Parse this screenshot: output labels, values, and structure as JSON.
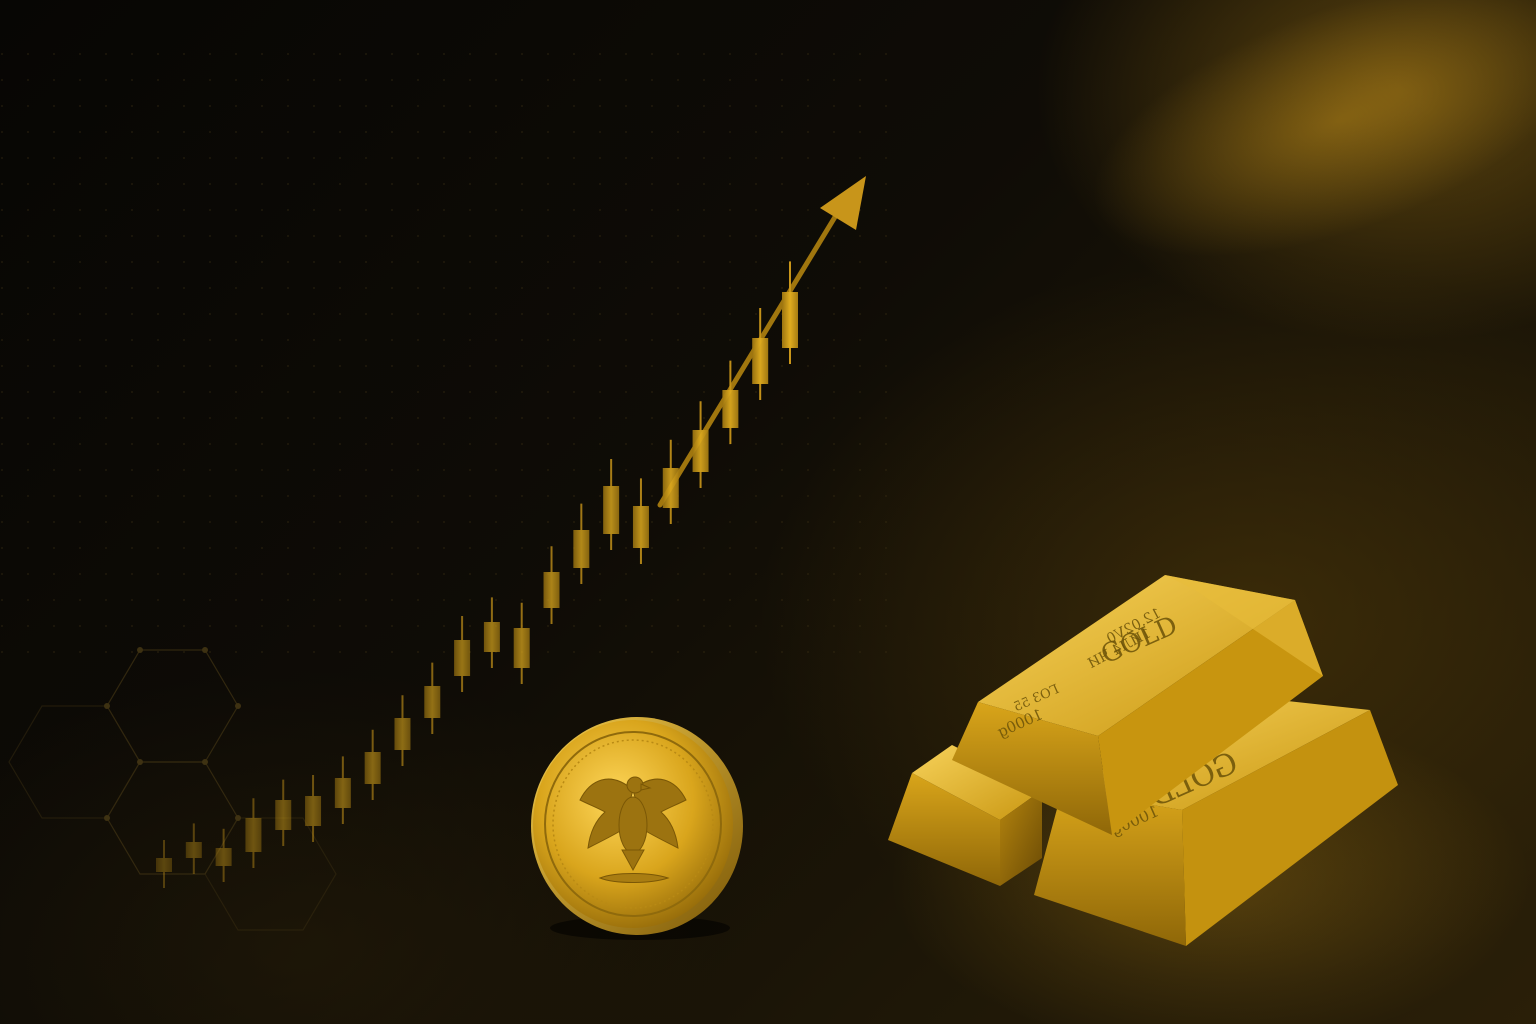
{
  "colors": {
    "gold_light": "#f2c94c",
    "gold_mid": "#d4a017",
    "gold_dark": "#8a6508",
    "background": "#0b0905"
  },
  "trend": {
    "direction": "up",
    "candle_count": 22
  },
  "gold_bar_front": {
    "brand": "GOLD",
    "weight": "1000g",
    "mark_line_1": "12.02V0",
    "mark_line_2": "1ИЛ4 ЧИ",
    "mark_line_3": "ГОЗ 55"
  },
  "gold_bar_back": {
    "brand": "GOLD",
    "weight": "1000g"
  },
  "coin": {
    "emblem": "eagle-icon"
  }
}
